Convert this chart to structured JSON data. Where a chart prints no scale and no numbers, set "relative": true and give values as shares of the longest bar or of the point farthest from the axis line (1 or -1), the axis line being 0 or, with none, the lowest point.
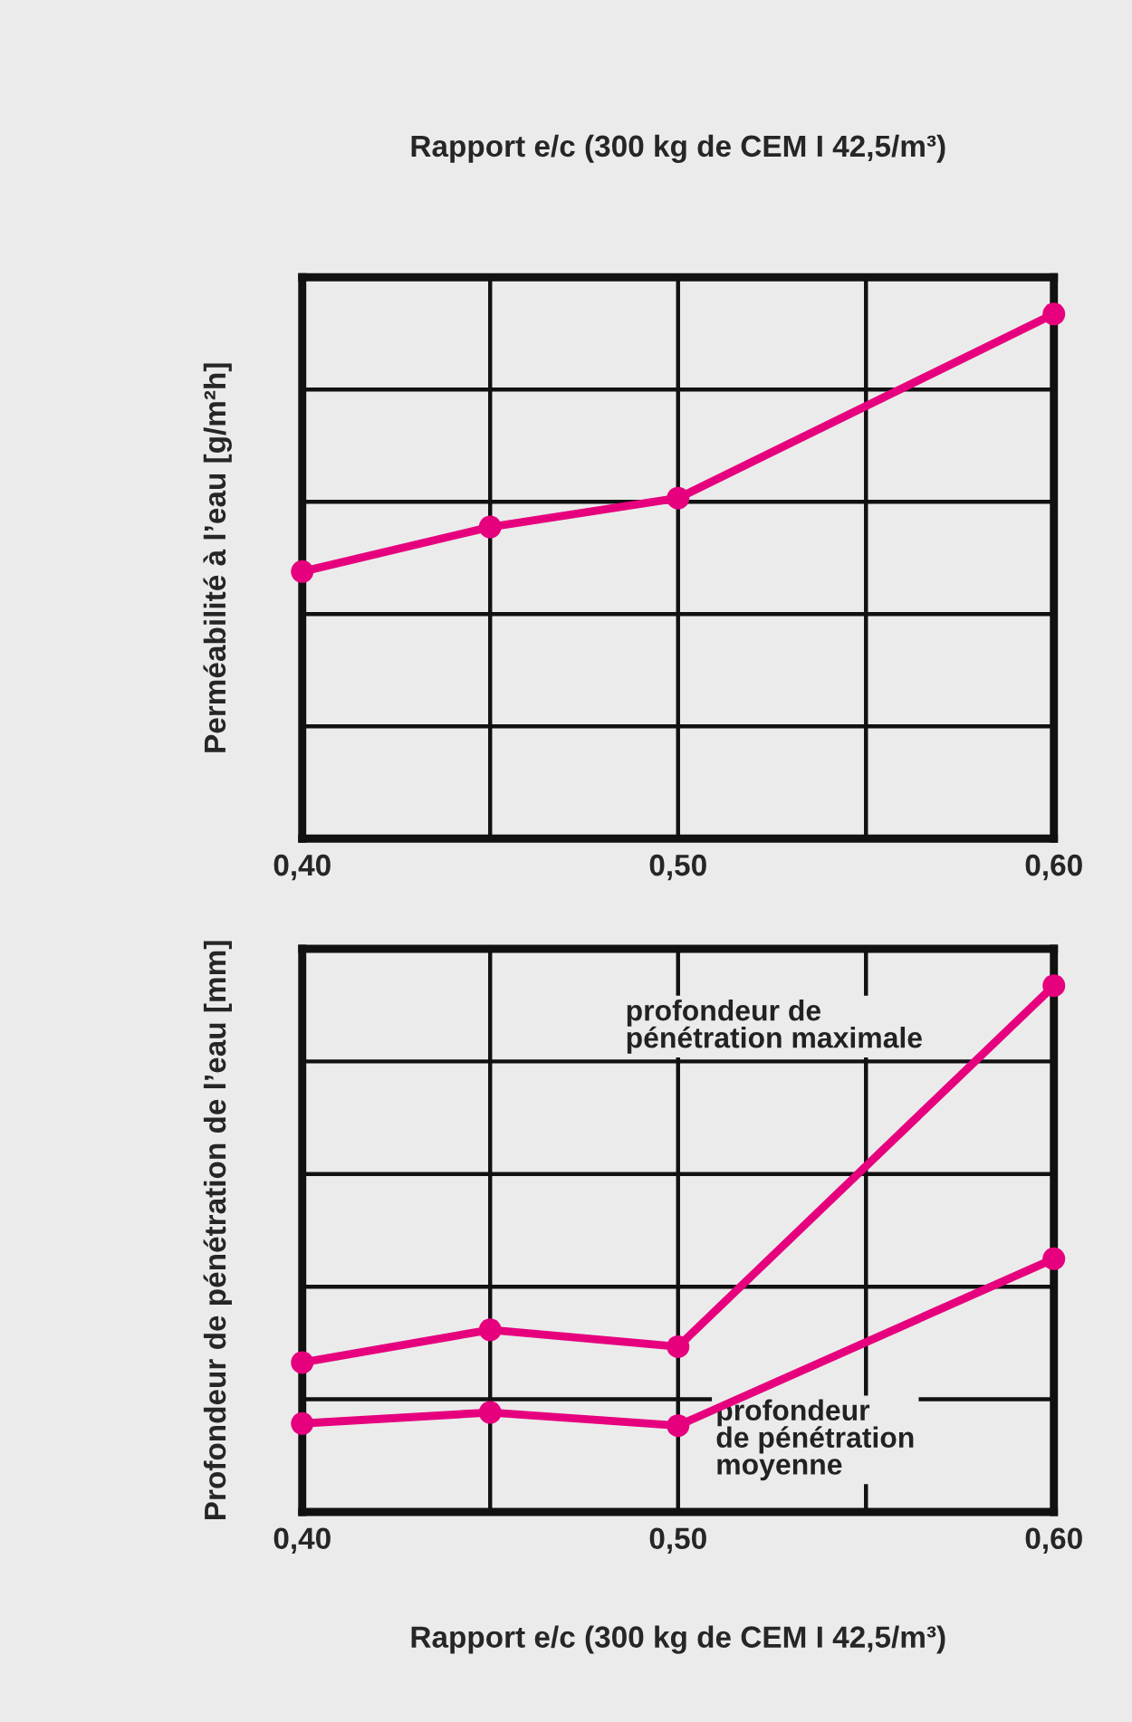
{
  "chart_data": [
    {
      "type": "line",
      "title": "Rapport e/c (300 kg de CEM I 42,5/m³)",
      "ylabel": "Perméabilité à l’eau [g/m²h]",
      "relative": true,
      "grid": true,
      "marker": "circle",
      "line_style": "solid",
      "x": [
        0.4,
        0.45,
        0.5,
        0.6
      ],
      "xlim": [
        0.4,
        0.6
      ],
      "xticks": [
        {
          "value": 0.4,
          "label": "0,40"
        },
        {
          "value": 0.45,
          "label": null
        },
        {
          "value": 0.5,
          "label": "0,50"
        },
        {
          "value": 0.55,
          "label": null
        },
        {
          "value": 0.6,
          "label": "0,60"
        }
      ],
      "series": [
        {
          "color": "#e6007e",
          "values": [
            0.509,
            0.594,
            0.649,
            1
          ]
        }
      ]
    },
    {
      "type": "line",
      "xlabel": "Rapport e/c (300 kg de CEM I 42,5/m³)",
      "ylabel": "Profondeur de pénétration de l’eau [mm]",
      "relative": true,
      "grid": true,
      "marker": "circle",
      "line_style": "solid",
      "x": [
        0.4,
        0.45,
        0.5,
        0.6
      ],
      "xlim": [
        0.4,
        0.6
      ],
      "xticks": [
        {
          "value": 0.4,
          "label": "0,40"
        },
        {
          "value": 0.45,
          "label": null
        },
        {
          "value": 0.5,
          "label": "0,50"
        },
        {
          "value": 0.55,
          "label": null
        },
        {
          "value": 0.6,
          "label": "0,60"
        }
      ],
      "series": [
        {
          "name": "profondeur de\npénétration maximale",
          "color": "#e6007e",
          "values": [
            0.284,
            0.346,
            0.314,
            1
          ]
        },
        {
          "name": "profondeur\nde pénétration\nmoyenne",
          "color": "#e6007e",
          "values": [
            0.168,
            0.189,
            0.164,
            0.481
          ]
        }
      ]
    }
  ]
}
